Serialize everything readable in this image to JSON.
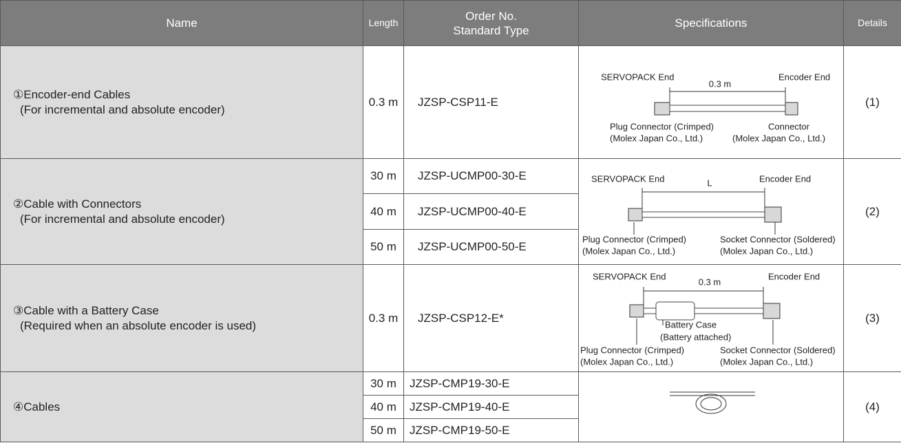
{
  "table": {
    "header": {
      "name": "Name",
      "length": "Length",
      "order_no": "Order No.",
      "order_type": "Standard Type",
      "specifications": "Specifications",
      "details": "Details"
    },
    "rows": [
      {
        "name": "①Encoder-end Cables",
        "note": "(For incremental and absolute encoder)",
        "items": [
          {
            "length": "0.3 m",
            "order_no": "JZSP-CSP11-E"
          }
        ],
        "diagram": {
          "servopack_end": "SERVOPACK End",
          "dimension": "0.3 m",
          "encoder_end": "Encoder End",
          "left_connector": "Plug Connector (Crimped)",
          "left_maker": "(Molex Japan Co., Ltd.)",
          "right_connector": "Connector",
          "right_maker": "(Molex Japan Co., Ltd.)"
        },
        "details": "(1)"
      },
      {
        "name": "②Cable with Connectors",
        "note": "(For incremental and absolute encoder)",
        "items": [
          {
            "length": "30 m",
            "order_no": "JZSP-UCMP00-30-E"
          },
          {
            "length": "40 m",
            "order_no": "JZSP-UCMP00-40-E"
          },
          {
            "length": "50 m",
            "order_no": "JZSP-UCMP00-50-E"
          }
        ],
        "diagram": {
          "servopack_end": "SERVOPACK End",
          "dimension": "L",
          "encoder_end": "Encoder End",
          "left_connector": "Plug Connector (Crimped)",
          "left_maker": "(Molex Japan Co., Ltd.)",
          "right_connector": "Socket Connector (Soldered)",
          "right_maker": "(Molex Japan Co., Ltd.)"
        },
        "details": "(2)"
      },
      {
        "name": "③Cable with a Battery Case",
        "note": "(Required when an absolute encoder is used)",
        "items": [
          {
            "length": "0.3 m",
            "order_no": "JZSP-CSP12-E*"
          }
        ],
        "diagram": {
          "servopack_end": "SERVOPACK End",
          "dimension": "0.3 m",
          "encoder_end": "Encoder End",
          "battery_case": "Battery Case",
          "battery_note": "(Battery attached)",
          "left_connector": "Plug Connector (Crimped)",
          "left_maker": "(Molex Japan Co., Ltd.)",
          "right_connector": "Socket Connector (Soldered)",
          "right_maker": "(Molex Japan Co., Ltd.)"
        },
        "details": "(3)"
      },
      {
        "name": "④Cables",
        "items": [
          {
            "length": "30 m",
            "order_no": "JZSP-CMP19-30-E"
          },
          {
            "length": "40 m",
            "order_no": "JZSP-CMP19-40-E"
          },
          {
            "length": "50 m",
            "order_no": "JZSP-CMP19-50-E"
          }
        ],
        "details": "(4)"
      }
    ]
  }
}
